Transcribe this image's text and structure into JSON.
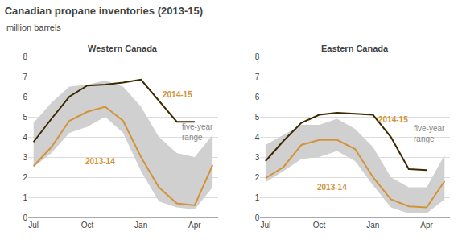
{
  "title": "Canadian propane inventories (2013-15)",
  "subtitle": "million barrels",
  "chart_data": [
    {
      "type": "line",
      "title": "Western Canada",
      "x": [
        0,
        1,
        2,
        3,
        4,
        5,
        6,
        7,
        8,
        9,
        10
      ],
      "xlim": [
        -0.3,
        10.3
      ],
      "xticks": [
        {
          "value": 0,
          "label": "Jul"
        },
        {
          "value": 3,
          "label": "Oct"
        },
        {
          "value": 6,
          "label": "Jan"
        },
        {
          "value": 9,
          "label": "Apr"
        }
      ],
      "ylim": [
        0,
        8
      ],
      "yticks": [
        0,
        1,
        2,
        3,
        4,
        5,
        6,
        7,
        8
      ],
      "grid": true,
      "series": [
        {
          "type": "area",
          "color": "#d0d0d0",
          "low": [
            2.5,
            3.2,
            4.2,
            4.5,
            5.0,
            4.2,
            2.3,
            0.8,
            0.5,
            0.4,
            1.5
          ],
          "high": [
            4.7,
            5.7,
            6.5,
            6.6,
            6.8,
            6.5,
            5.5,
            4.0,
            3.2,
            3.0,
            4.1
          ]
        },
        {
          "type": "line",
          "color": "#D4933A",
          "values": [
            2.55,
            3.5,
            4.8,
            5.25,
            5.5,
            4.8,
            3.0,
            1.5,
            0.7,
            0.6,
            2.6
          ]
        },
        {
          "type": "line",
          "color": "#3d2800",
          "values": [
            3.75,
            4.9,
            6.0,
            6.55,
            6.6,
            6.7,
            6.85,
            5.8,
            4.75,
            4.75,
            null
          ]
        }
      ],
      "annotations": [
        {
          "text": "2014-15",
          "x": 7.1,
          "y": 5.8,
          "color": "#D4933A"
        },
        {
          "text": "2013-14",
          "x": 2.8,
          "y": 2.5,
          "color": "#D4933A"
        },
        {
          "text": "five-year\nrange",
          "x": 8.2,
          "y": 3.7,
          "color": "#888888"
        }
      ]
    },
    {
      "type": "line",
      "title": "Eastern Canada",
      "x": [
        0,
        1,
        2,
        3,
        4,
        5,
        6,
        7,
        8,
        9,
        10
      ],
      "xlim": [
        -0.3,
        10.3
      ],
      "xticks": [
        {
          "value": 0,
          "label": "Jul"
        },
        {
          "value": 3,
          "label": "Oct"
        },
        {
          "value": 6,
          "label": "Jan"
        },
        {
          "value": 9,
          "label": "Apr"
        }
      ],
      "ylim": [
        0,
        8
      ],
      "yticks": [
        0,
        1,
        2,
        3,
        4,
        5,
        6,
        7,
        8
      ],
      "grid": true,
      "series": [
        {
          "type": "area",
          "color": "#d0d0d0",
          "low": [
            1.75,
            2.3,
            2.9,
            3.0,
            3.3,
            2.8,
            1.6,
            0.5,
            0.2,
            0.2,
            0.9
          ],
          "high": [
            3.6,
            4.1,
            4.6,
            4.6,
            4.9,
            4.4,
            3.5,
            2.0,
            1.5,
            1.5,
            3.1
          ]
        },
        {
          "type": "line",
          "color": "#D4933A",
          "values": [
            1.95,
            2.5,
            3.6,
            3.85,
            3.85,
            3.4,
            2.0,
            0.9,
            0.55,
            0.5,
            1.8
          ]
        },
        {
          "type": "line",
          "color": "#3d2800",
          "values": [
            2.8,
            3.8,
            4.7,
            5.1,
            5.2,
            5.15,
            5.1,
            4.0,
            2.4,
            2.35,
            null
          ]
        }
      ],
      "annotations": [
        {
          "text": "2014-15",
          "x": 6.2,
          "y": 4.55,
          "color": "#D4933A"
        },
        {
          "text": "2013-14",
          "x": 2.8,
          "y": 1.2,
          "color": "#D4933A"
        },
        {
          "text": "five-year\nrange",
          "x": 8.2,
          "y": 3.6,
          "color": "#888888"
        }
      ]
    }
  ]
}
